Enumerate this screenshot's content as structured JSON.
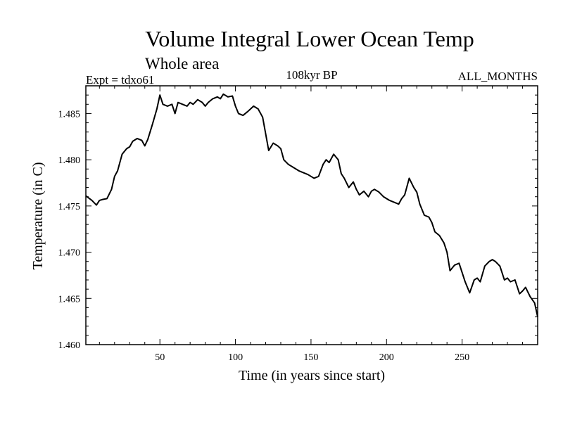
{
  "chart_data": {
    "type": "line",
    "title": "Volume Integral Lower Ocean Temp",
    "subtitle": "Whole area",
    "header_left": "Expt = tdxo61",
    "header_center": "108kyr BP",
    "header_right": "ALL_MONTHS",
    "xlabel": "Time (in years since start)",
    "ylabel": "Temperature (in C)",
    "xlim": [
      1,
      300
    ],
    "ylim": [
      1.46,
      1.488
    ],
    "xticks": [
      50,
      100,
      150,
      200,
      250
    ],
    "yticks": [
      1.46,
      1.465,
      1.47,
      1.475,
      1.48,
      1.485
    ],
    "ytick_labels": [
      "1.460",
      "1.465",
      "1.470",
      "1.475",
      "1.480",
      "1.485"
    ],
    "series": [
      {
        "name": "Volume Integral Lower Ocean Temp",
        "x": [
          1,
          5,
          8,
          10,
          12,
          15,
          18,
          20,
          22,
          25,
          28,
          30,
          32,
          35,
          38,
          40,
          42,
          45,
          48,
          50,
          52,
          55,
          58,
          60,
          62,
          65,
          68,
          70,
          72,
          75,
          78,
          80,
          82,
          85,
          88,
          90,
          92,
          95,
          98,
          100,
          102,
          105,
          108,
          110,
          112,
          115,
          118,
          120,
          122,
          125,
          128,
          130,
          132,
          135,
          138,
          140,
          142,
          145,
          148,
          150,
          152,
          155,
          158,
          160,
          162,
          165,
          168,
          170,
          172,
          175,
          178,
          180,
          182,
          185,
          188,
          190,
          192,
          195,
          198,
          200,
          202,
          205,
          208,
          210,
          212,
          215,
          218,
          220,
          222,
          225,
          228,
          230,
          232,
          235,
          238,
          240,
          242,
          245,
          248,
          250,
          252,
          255,
          258,
          260,
          262,
          265,
          268,
          270,
          272,
          275,
          278,
          280,
          282,
          285,
          288,
          290,
          292,
          295,
          298,
          300
        ],
        "values": [
          1.4761,
          1.4756,
          1.4751,
          1.4756,
          1.4757,
          1.4758,
          1.4768,
          1.4782,
          1.4788,
          1.4806,
          1.4812,
          1.4814,
          1.482,
          1.4823,
          1.4821,
          1.4815,
          1.4822,
          1.4838,
          1.4855,
          1.487,
          1.486,
          1.4858,
          1.486,
          1.485,
          1.4862,
          1.486,
          1.4858,
          1.4862,
          1.486,
          1.4865,
          1.4862,
          1.4858,
          1.4862,
          1.4866,
          1.4868,
          1.4866,
          1.4871,
          1.4868,
          1.4869,
          1.4858,
          1.485,
          1.4848,
          1.4852,
          1.4855,
          1.4858,
          1.4855,
          1.4846,
          1.4828,
          1.481,
          1.4818,
          1.4815,
          1.4812,
          1.48,
          1.4795,
          1.4792,
          1.479,
          1.4788,
          1.4786,
          1.4784,
          1.4782,
          1.478,
          1.4782,
          1.4795,
          1.48,
          1.4797,
          1.4806,
          1.48,
          1.4785,
          1.478,
          1.477,
          1.4776,
          1.4768,
          1.4762,
          1.4766,
          1.476,
          1.4766,
          1.4768,
          1.4765,
          1.476,
          1.4758,
          1.4756,
          1.4754,
          1.4752,
          1.4758,
          1.4762,
          1.478,
          1.477,
          1.4765,
          1.4752,
          1.474,
          1.4738,
          1.4732,
          1.4722,
          1.4718,
          1.471,
          1.47,
          1.468,
          1.4686,
          1.4688,
          1.4678,
          1.4668,
          1.4656,
          1.467,
          1.4672,
          1.4668,
          1.4685,
          1.469,
          1.4692,
          1.469,
          1.4685,
          1.467,
          1.4672,
          1.4668,
          1.467,
          1.4655,
          1.4658,
          1.4662,
          1.4652,
          1.4645,
          1.463
        ]
      }
    ]
  }
}
